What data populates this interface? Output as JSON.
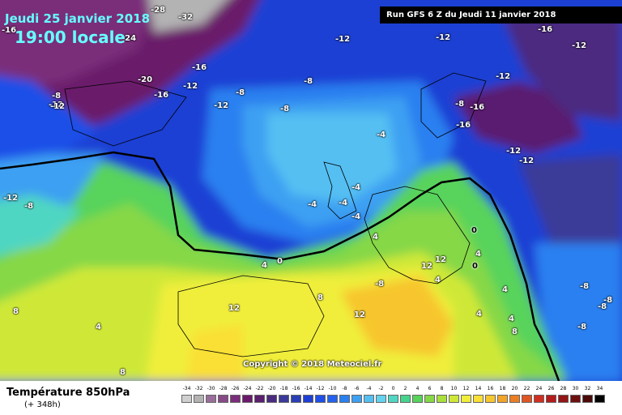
{
  "header": {
    "date": "Jeudi 25 janvier 2018",
    "time": "19:00 locale",
    "run": "Run GFS 6 Z du Jeudi 11 janvier 2018"
  },
  "copyright": "Copyright © 2018 Meteociel.fr",
  "footer": {
    "title": "Température 850hPa",
    "subtitle": "(+ 348h)"
  },
  "contour_labels": [
    "-28",
    "-32",
    "-16",
    "-24",
    "-12",
    "-12",
    "-16",
    "-12",
    "-20",
    "-12",
    "-8",
    "-16",
    "-8",
    "-12",
    "-16",
    "-8",
    "-12",
    "-8",
    "-12",
    "-8",
    "-16",
    "-16",
    "-4",
    "-12",
    "-12",
    "-12",
    "-8",
    "-4",
    "-4",
    "-4",
    "-4",
    "0",
    "4",
    "0",
    "4",
    "12",
    "0",
    "12",
    "-8",
    "4",
    "8",
    "12",
    "8",
    "4",
    "12",
    "8",
    "4",
    "-8",
    "-8",
    "-8",
    "8",
    "4",
    "4",
    "-8",
    "-12",
    "4"
  ],
  "scale": {
    "values": [
      "-34",
      "-32",
      "-30",
      "-28",
      "-26",
      "-24",
      "-22",
      "-20",
      "-18",
      "-16",
      "-14",
      "-12",
      "-10",
      "-8",
      "-6",
      "-4",
      "-2",
      "0",
      "2",
      "4",
      "6",
      "8",
      "10",
      "12",
      "14",
      "16",
      "18",
      "20",
      "22",
      "24",
      "26",
      "28",
      "30",
      "32",
      "34"
    ],
    "colors": [
      "#cfcfcf",
      "#b3b3b3",
      "#9a6e9a",
      "#874a87",
      "#7a2d7a",
      "#6a1a6a",
      "#5a1f6f",
      "#4b2b80",
      "#3b3a98",
      "#2a3fb5",
      "#1f3fd4",
      "#1f4fe8",
      "#2462ee",
      "#2a80f0",
      "#3da0f2",
      "#55bff2",
      "#63d3f0",
      "#50d6c2",
      "#46d38c",
      "#58d35b",
      "#86d847",
      "#a9e03b",
      "#cfe837",
      "#f0ee3a",
      "#fadf35",
      "#f7c62e",
      "#f2a42a",
      "#ea7e25",
      "#e05622",
      "#cf2f20",
      "#b51b1b",
      "#941515",
      "#6e1010",
      "#4a0a0a",
      "#000000"
    ]
  }
}
